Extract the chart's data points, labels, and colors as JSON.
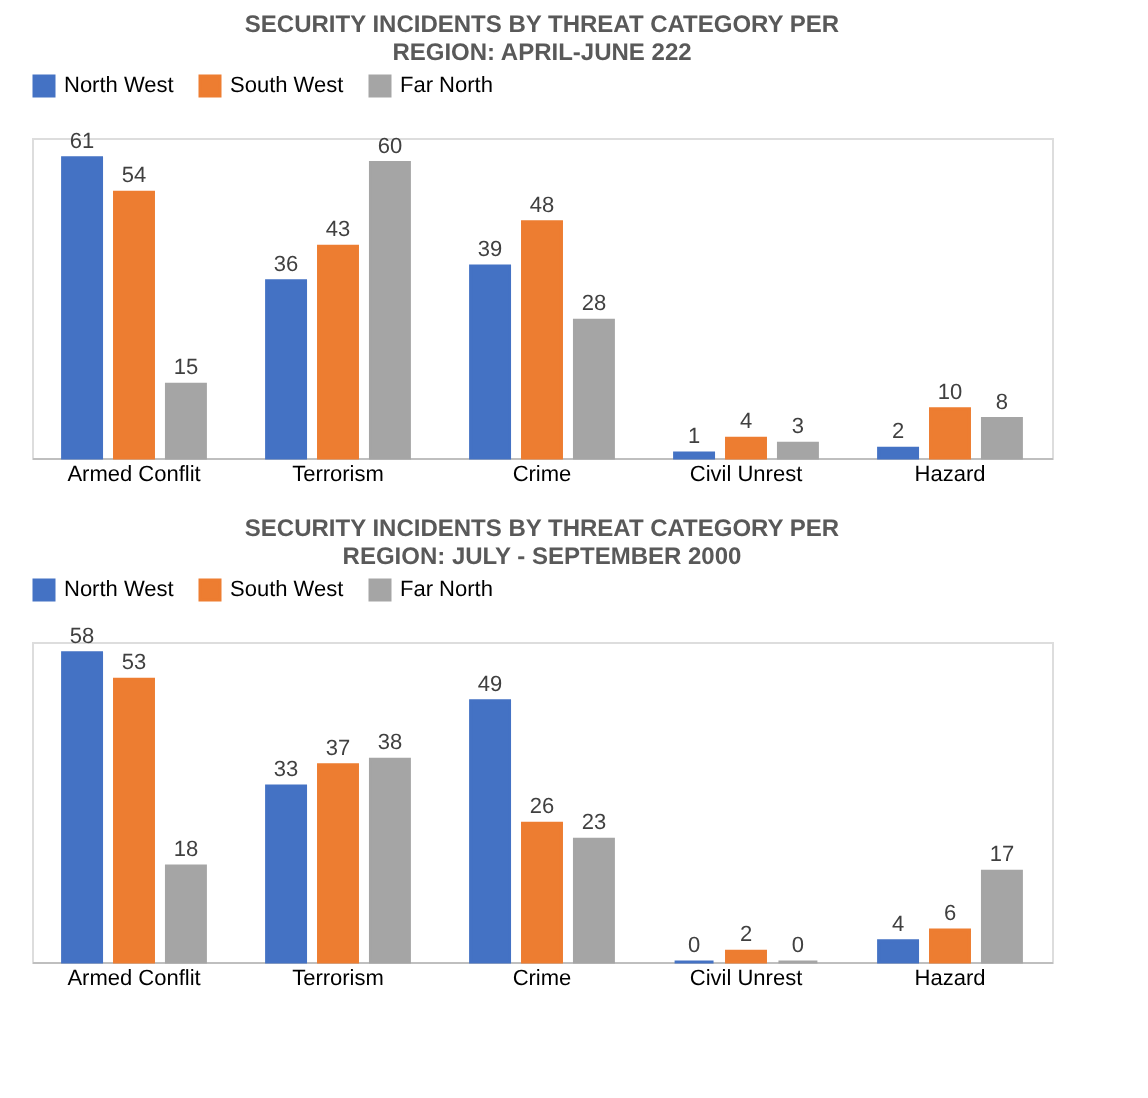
{
  "chart_data": [
    {
      "type": "bar",
      "title": "SECURITY INCIDENTS BY THREAT CATEGORY PER REGION: APRIL-JUNE 222",
      "categories": [
        "Armed Conflit",
        "Terrorism",
        "Crime",
        "Civil Unrest",
        "Hazard"
      ],
      "series": [
        {
          "name": "North West",
          "color": "#4472c4",
          "values": [
            61,
            36,
            39,
            1,
            2
          ]
        },
        {
          "name": "South West",
          "color": "#ed7d31",
          "values": [
            54,
            43,
            48,
            4,
            10
          ]
        },
        {
          "name": "Far North",
          "color": "#a5a5a5",
          "values": [
            15,
            60,
            28,
            3,
            8
          ]
        }
      ],
      "data_labels": true,
      "legend": "top",
      "grid": false
    },
    {
      "type": "bar",
      "title": "SECURITY INCIDENTS BY THREAT CATEGORY PER REGION: JULY - SEPTEMBER 2000",
      "categories": [
        "Armed Conflit",
        "Terrorism",
        "Crime",
        "Civil Unrest",
        "Hazard"
      ],
      "series": [
        {
          "name": "North West",
          "color": "#4472c4",
          "values": [
            58,
            33,
            49,
            0,
            4
          ]
        },
        {
          "name": "South West",
          "color": "#ed7d31",
          "values": [
            53,
            37,
            26,
            2,
            6
          ]
        },
        {
          "name": "Far North",
          "color": "#a5a5a5",
          "values": [
            18,
            38,
            23,
            0,
            17
          ]
        }
      ],
      "data_labels": true,
      "legend": "top",
      "grid": false
    }
  ]
}
